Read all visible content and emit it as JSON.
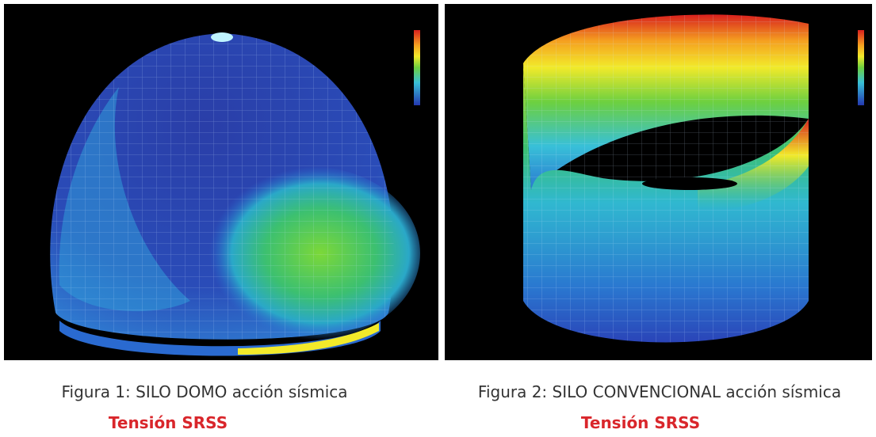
{
  "figures": [
    {
      "caption": "Figura 1: SILO DOMO acción sísmica",
      "subcaption": "Tensión SRSS"
    },
    {
      "caption": "Figura 2: SILO CONVENCIONAL acción sísmica",
      "subcaption": "Tensión SRSS"
    }
  ]
}
